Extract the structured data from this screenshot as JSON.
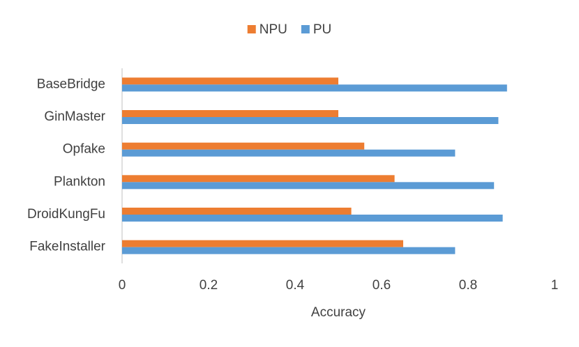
{
  "chart_data": {
    "type": "barh",
    "categories": [
      "BaseBridge",
      "GinMaster",
      "Opfake",
      "Plankton",
      "DroidKungFu",
      "FakeInstaller"
    ],
    "series": [
      {
        "name": "NPU",
        "color": "#ed7d31",
        "values": [
          0.5,
          0.5,
          0.56,
          0.63,
          0.53,
          0.65
        ]
      },
      {
        "name": "PU",
        "color": "#5b9bd5",
        "values": [
          0.89,
          0.87,
          0.77,
          0.86,
          0.88,
          0.77
        ]
      }
    ],
    "xlabel": "Accuracy",
    "xlim": [
      0,
      1
    ],
    "xticks": [
      0,
      0.2,
      0.4,
      0.6,
      0.8,
      1
    ],
    "grid": false,
    "legend": "top"
  }
}
